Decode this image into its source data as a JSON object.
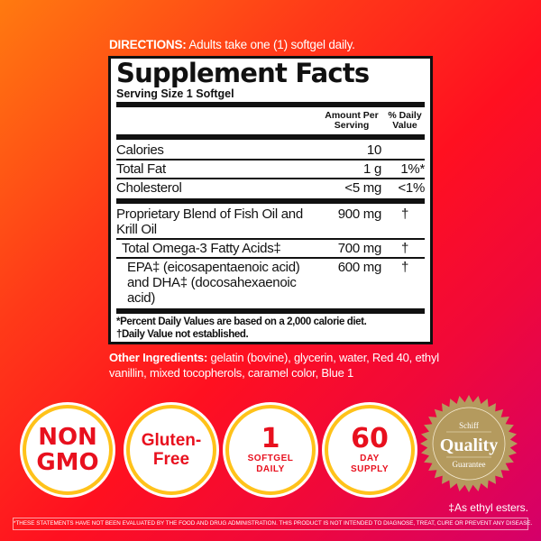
{
  "directions": {
    "label": "DIRECTIONS:",
    "text": "Adults take one (1) softgel daily."
  },
  "facts": {
    "title": "Supplement Facts",
    "serving_size": "Serving Size 1 Softgel",
    "col_amount": "Amount Per Serving",
    "col_dv": "% Daily Value",
    "rows": [
      {
        "name": "Calories",
        "amount": "10",
        "dv": ""
      },
      {
        "name": "Total Fat",
        "amount": "1 g",
        "dv": "1%*"
      },
      {
        "name": "Cholesterol",
        "amount": "<5 mg",
        "dv": "<1%"
      },
      {
        "name": "Proprietary Blend of Fish Oil and Krill Oil",
        "amount": "900 mg",
        "dv": "†"
      },
      {
        "name": "Total Omega-3 Fatty Acids‡",
        "amount": "700 mg",
        "dv": "†"
      },
      {
        "name": "EPA‡ (eicosapentaenoic acid) and DHA‡ (docosahexaenoic acid)",
        "amount": "600 mg",
        "dv": "†"
      }
    ],
    "footnote1": "*Percent Daily Values are based on a 2,000 calorie diet.",
    "footnote2": "†Daily Value not established."
  },
  "other_ingredients": {
    "label": "Other Ingredients:",
    "text": "gelatin (bovine), glycerin, water, Red 40, ethyl vanillin, mixed tocopherols, caramel color,  Blue 1"
  },
  "badges": [
    {
      "line1": "NON",
      "line2": "GMO"
    },
    {
      "line1": "Gluten-",
      "line2": "Free"
    },
    {
      "line1": "1",
      "line2": "SOFTGEL",
      "line3": "DAILY"
    },
    {
      "line1": "60",
      "line2": "DAY",
      "line3": "SUPPLY"
    }
  ],
  "seal": {
    "brand": "Schiff",
    "main": "Quality",
    "sub": "Guarantee",
    "color": "#b49a5e"
  },
  "ethyl_note": "‡As ethyl esters.",
  "disclaimer": "*THESE STATEMENTS HAVE NOT BEEN EVALUATED BY THE FOOD AND DRUG ADMINISTRATION. THIS PRODUCT IS NOT INTENDED TO DIAGNOSE, TREAT, CURE OR PREVENT ANY DISEASE."
}
